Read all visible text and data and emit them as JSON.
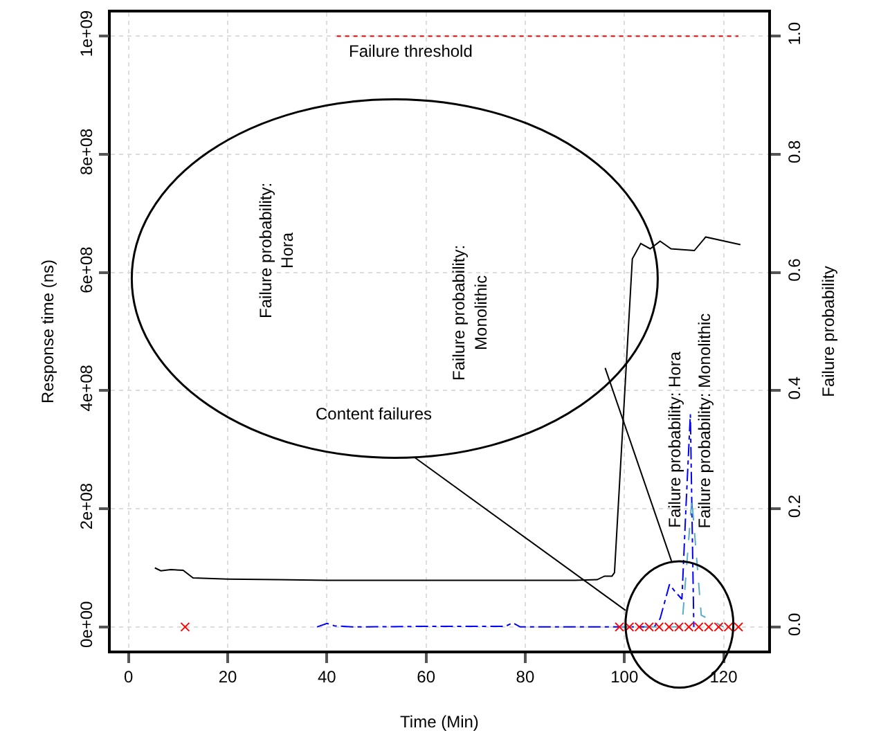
{
  "chart_data": {
    "type": "line",
    "xlabel": "Time (Min)",
    "ylabel": "Response time (ns)",
    "y2label": "Failure probability",
    "xlim": [
      -3.6,
      129
    ],
    "xticks": [
      0,
      20,
      40,
      60,
      80,
      100,
      120
    ],
    "ylim": [
      -40000000,
      1040000000
    ],
    "yticks": [
      {
        "value": 0,
        "label": "0e+00"
      },
      {
        "value": 200000000,
        "label": "2e+08"
      },
      {
        "value": 400000000,
        "label": "4e+08"
      },
      {
        "value": 600000000,
        "label": "6e+08"
      },
      {
        "value": 800000000,
        "label": "8e+08"
      },
      {
        "value": 1000000000,
        "label": "1e+09"
      }
    ],
    "y2lim": [
      -0.04,
      1.04
    ],
    "y2ticks": [
      {
        "value": 0,
        "label": "0.0"
      },
      {
        "value": 0.2,
        "label": "0.2"
      },
      {
        "value": 0.4,
        "label": "0.4"
      },
      {
        "value": 0.6,
        "label": "0.6"
      },
      {
        "value": 0.8,
        "label": "0.8"
      },
      {
        "value": 1,
        "label": "1.0"
      }
    ],
    "grid": true,
    "series": [
      {
        "color": "#000000",
        "line_style": "solid",
        "marker": "none",
        "x": [
          5.3,
          6.5,
          8.5,
          11,
          13,
          20,
          30,
          40,
          50,
          60,
          70,
          80,
          90,
          94.5,
          96,
          97.5,
          98,
          101.6,
          103.3,
          105.2,
          107.2,
          109.4,
          114.1,
          116.4,
          123.4
        ],
        "values": [
          100000000,
          95000000,
          97000000,
          96000000,
          83000000,
          81000000,
          80000000,
          79000000,
          79000000,
          79000000,
          79000000,
          79000000,
          79000000,
          80000000,
          86000000,
          86000000,
          92000000,
          623000000,
          649000000,
          640000000,
          653000000,
          640000000,
          637000000,
          660000000,
          647000000
        ]
      },
      {
        "axis": "y2",
        "color": "#0000ff",
        "line_style": "dashdot",
        "marker": "none",
        "x": [
          38,
          40,
          41.5,
          45,
          60,
          76,
          77.5,
          79,
          99,
          106,
          107.2,
          109.1,
          110.2,
          111.6,
          112.4,
          113.3,
          114
        ],
        "values": [
          0,
          0.006,
          0.002,
          0,
          0.001,
          0.001,
          0.007,
          0,
          0,
          0,
          0.014,
          0.072,
          0.06,
          0.047,
          0.2,
          0.36,
          0
        ]
      },
      {
        "axis": "y2",
        "color": "#5aaccc",
        "line_style": "dashed",
        "marker": "none",
        "x": [
          99,
          111.6,
          113.6,
          115.5,
          120
        ],
        "values": [
          0,
          0,
          0.216,
          0.02,
          0
        ]
      },
      {
        "type": "scatter",
        "axis": "y2",
        "color": "#ff0000",
        "marker": "cross",
        "x": [
          11.4,
          99,
          101,
          103,
          105,
          107,
          109,
          111,
          113,
          115,
          117,
          119,
          121,
          123
        ],
        "values": [
          0,
          0,
          0,
          0,
          0,
          0,
          0,
          0,
          0,
          0,
          0,
          0,
          0,
          0
        ]
      },
      {
        "color": "#ff0000",
        "line_style": "dotted",
        "marker": "none",
        "x": [
          42,
          123
        ],
        "values": [
          1000000000,
          1000000000
        ]
      }
    ],
    "annotations": [
      "Failure threshold",
      "Failure probability: Hora",
      "Failure probability: Monolithic",
      "Failure probability:\nHora",
      "Failure probability:\nMonolithic",
      "Content failures"
    ]
  }
}
